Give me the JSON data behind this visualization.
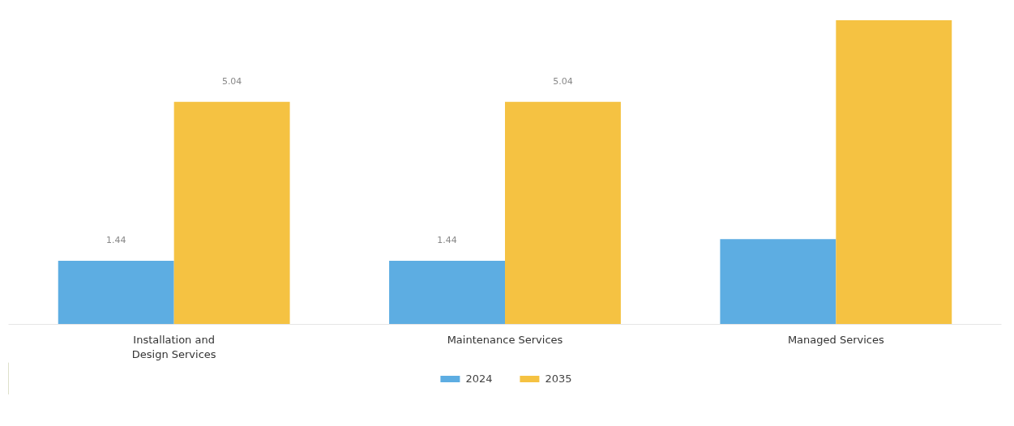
{
  "chart_data": {
    "type": "bar",
    "categories": [
      "Installation and Design Services",
      "Maintenance Services",
      "Managed Services"
    ],
    "series": [
      {
        "name": "2024",
        "color": "#5dade2",
        "values": [
          1.44,
          1.44,
          1.93
        ],
        "value_labels": [
          "1.44",
          "1.44",
          null
        ]
      },
      {
        "name": "2035",
        "color": "#f5c242",
        "values": [
          5.04,
          5.04,
          6.89
        ],
        "value_labels": [
          "5.04",
          "5.04",
          null
        ]
      }
    ],
    "legend": "bottom"
  }
}
